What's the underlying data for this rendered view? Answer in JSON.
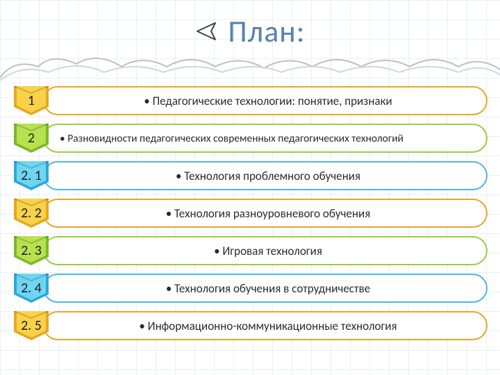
{
  "title": "План:",
  "title_color": "#5682b0",
  "title_fontsize": 44,
  "arrow_stroke": "#444444",
  "background_grid_color": "#d0e0e8",
  "cloud_stroke": "#b8c1c7",
  "items": [
    {
      "num": "1",
      "text": "• Педагогические технологии: понятие, признаки",
      "tag_light": "#f9d24a",
      "tag_dark": "#e8a722",
      "border": "#e8a722",
      "center": true
    },
    {
      "num": "2",
      "text": "• Разновидности педагогических современных педагогических технологий",
      "tag_light": "#b7e24e",
      "tag_dark": "#7fb52f",
      "border": "#9bcf3f",
      "center": false
    },
    {
      "num": "2. 1",
      "text": "• Технология проблемного обучения",
      "tag_light": "#6fd6f2",
      "tag_dark": "#2da8d8",
      "border": "#4bb9e2",
      "center": true
    },
    {
      "num": "2. 2",
      "text": "• Технология разноуровневого обучения",
      "tag_light": "#f9d24a",
      "tag_dark": "#e8a722",
      "border": "#e8a722",
      "center": true
    },
    {
      "num": "2. 3",
      "text": "• Игровая технология",
      "tag_light": "#b7e24e",
      "tag_dark": "#7fb52f",
      "border": "#9bcf3f",
      "center": true
    },
    {
      "num": "2. 4",
      "text": "• Технология обучения в сотрудничестве",
      "tag_light": "#6fd6f2",
      "tag_dark": "#2da8d8",
      "border": "#4bb9e2",
      "center": true
    },
    {
      "num": "2. 5",
      "text": "• Информационно-коммуникационные технология",
      "tag_light": "#f9d24a",
      "tag_dark": "#e8a722",
      "border": "#e8a722",
      "center": true
    }
  ]
}
